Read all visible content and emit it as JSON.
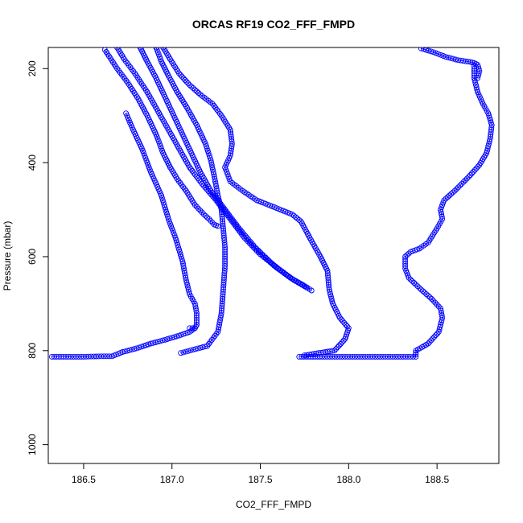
{
  "chart_data": {
    "type": "scatter",
    "title": "ORCAS RF19 CO2_FFF_FMPD",
    "xlabel": "CO2_FFF_FMPD",
    "ylabel": "Pressure (mbar)",
    "xlim": [
      186.3,
      188.85
    ],
    "ylim": [
      1040,
      155
    ],
    "y_reversed": true,
    "x_ticks": [
      "186.5",
      "187.0",
      "187.5",
      "188.0",
      "188.5"
    ],
    "y_ticks": [
      "200",
      "400",
      "600",
      "800",
      "1000"
    ],
    "grid": false,
    "legend": "none",
    "point_color": "#0000ff",
    "marker": "open-circle",
    "series": [
      {
        "points": [
          [
            186.74,
            295
          ],
          [
            186.78,
            330
          ],
          [
            186.83,
            370
          ],
          [
            186.88,
            420
          ],
          [
            186.94,
            470
          ],
          [
            186.98,
            520
          ],
          [
            187.02,
            560
          ],
          [
            187.06,
            610
          ],
          [
            187.08,
            650
          ],
          [
            187.1,
            680
          ],
          [
            187.13,
            700
          ],
          [
            187.14,
            720
          ],
          [
            187.14,
            745
          ],
          [
            187.13,
            752
          ],
          [
            187.1,
            752
          ]
        ]
      },
      {
        "points": [
          [
            186.62,
            160
          ],
          [
            186.69,
            200
          ],
          [
            186.75,
            230
          ],
          [
            186.81,
            265
          ],
          [
            186.86,
            300
          ],
          [
            186.91,
            340
          ],
          [
            186.95,
            380
          ],
          [
            186.99,
            410
          ],
          [
            187.03,
            435
          ],
          [
            187.08,
            460
          ],
          [
            187.13,
            490
          ],
          [
            187.18,
            510
          ],
          [
            187.21,
            520
          ],
          [
            187.24,
            532
          ],
          [
            187.26,
            535
          ]
        ]
      },
      {
        "points": [
          [
            186.91,
            155
          ],
          [
            186.94,
            185
          ],
          [
            186.98,
            215
          ],
          [
            187.03,
            250
          ],
          [
            187.08,
            280
          ],
          [
            187.14,
            320
          ],
          [
            187.19,
            360
          ],
          [
            187.22,
            395
          ],
          [
            187.24,
            430
          ],
          [
            187.26,
            470
          ],
          [
            187.28,
            500
          ],
          [
            187.29,
            540
          ],
          [
            187.3,
            580
          ],
          [
            187.3,
            620
          ],
          [
            187.29,
            670
          ],
          [
            187.28,
            720
          ],
          [
            187.26,
            760
          ],
          [
            187.2,
            790
          ],
          [
            187.12,
            798
          ],
          [
            187.05,
            805
          ]
        ]
      },
      {
        "points": [
          [
            186.82,
            155
          ],
          [
            186.86,
            185
          ],
          [
            186.91,
            220
          ],
          [
            186.96,
            260
          ],
          [
            187.01,
            300
          ],
          [
            187.06,
            340
          ],
          [
            187.11,
            380
          ],
          [
            187.16,
            420
          ],
          [
            187.22,
            460
          ],
          [
            187.3,
            500
          ],
          [
            187.38,
            540
          ],
          [
            187.47,
            580
          ],
          [
            187.58,
            620
          ],
          [
            187.67,
            645
          ],
          [
            187.74,
            660
          ],
          [
            187.79,
            672
          ]
        ]
      },
      {
        "points": [
          [
            186.69,
            155
          ],
          [
            186.73,
            180
          ],
          [
            186.79,
            210
          ],
          [
            186.86,
            250
          ],
          [
            186.92,
            290
          ],
          [
            186.98,
            330
          ],
          [
            187.04,
            370
          ],
          [
            187.1,
            410
          ],
          [
            187.17,
            445
          ],
          [
            187.25,
            480
          ],
          [
            187.33,
            520
          ],
          [
            187.41,
            560
          ],
          [
            187.5,
            595
          ],
          [
            187.6,
            625
          ],
          [
            187.69,
            650
          ],
          [
            187.76,
            665
          ]
        ]
      },
      {
        "points": [
          [
            186.95,
            155
          ],
          [
            186.99,
            180
          ],
          [
            187.04,
            210
          ],
          [
            187.1,
            235
          ],
          [
            187.16,
            255
          ],
          [
            187.23,
            275
          ],
          [
            187.28,
            300
          ],
          [
            187.33,
            330
          ],
          [
            187.34,
            360
          ],
          [
            187.33,
            385
          ],
          [
            187.3,
            410
          ],
          [
            187.33,
            440
          ],
          [
            187.4,
            460
          ],
          [
            187.48,
            480
          ],
          [
            187.58,
            495
          ],
          [
            187.68,
            510
          ],
          [
            187.73,
            525
          ],
          [
            187.78,
            560
          ],
          [
            187.84,
            600
          ],
          [
            187.88,
            630
          ],
          [
            187.89,
            670
          ],
          [
            187.91,
            700
          ],
          [
            187.95,
            730
          ],
          [
            188.0,
            752
          ],
          [
            187.98,
            775
          ],
          [
            187.92,
            800
          ],
          [
            187.83,
            805
          ],
          [
            187.75,
            810
          ]
        ]
      },
      {
        "points": [
          [
            186.32,
            813
          ],
          [
            186.4,
            813
          ],
          [
            186.5,
            813
          ],
          [
            186.6,
            812
          ],
          [
            186.66,
            812
          ],
          [
            186.72,
            803
          ],
          [
            186.8,
            795
          ],
          [
            186.88,
            785
          ],
          [
            186.96,
            777
          ],
          [
            187.04,
            768
          ],
          [
            187.1,
            760
          ],
          [
            187.13,
            752
          ]
        ]
      },
      {
        "points": [
          [
            187.72,
            813
          ],
          [
            187.85,
            813
          ],
          [
            187.95,
            813
          ],
          [
            188.05,
            813
          ],
          [
            188.15,
            813
          ],
          [
            188.25,
            813
          ],
          [
            188.35,
            813
          ],
          [
            188.38,
            813
          ],
          [
            188.38,
            800
          ],
          [
            188.45,
            785
          ],
          [
            188.51,
            760
          ],
          [
            188.53,
            730
          ],
          [
            188.52,
            710
          ],
          [
            188.47,
            690
          ],
          [
            188.41,
            670
          ],
          [
            188.34,
            645
          ],
          [
            188.32,
            625
          ],
          [
            188.32,
            600
          ],
          [
            188.35,
            590
          ],
          [
            188.4,
            583
          ],
          [
            188.45,
            570
          ],
          [
            188.5,
            540
          ],
          [
            188.53,
            520
          ],
          [
            188.52,
            500
          ],
          [
            188.54,
            480
          ],
          [
            188.6,
            460
          ],
          [
            188.68,
            430
          ],
          [
            188.74,
            405
          ],
          [
            188.78,
            380
          ],
          [
            188.8,
            350
          ],
          [
            188.81,
            320
          ],
          [
            188.79,
            295
          ],
          [
            188.76,
            275
          ],
          [
            188.73,
            250
          ],
          [
            188.71,
            220
          ],
          [
            188.71,
            195
          ]
        ]
      },
      {
        "points": [
          [
            188.41,
            157
          ],
          [
            188.48,
            165
          ],
          [
            188.55,
            175
          ],
          [
            188.62,
            182
          ],
          [
            188.69,
            186
          ],
          [
            188.71,
            188
          ],
          [
            188.73,
            192
          ],
          [
            188.74,
            205
          ],
          [
            188.73,
            220
          ]
        ]
      }
    ]
  }
}
